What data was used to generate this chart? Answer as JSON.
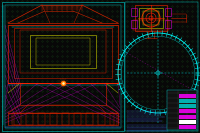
{
  "bg_color": "#080808",
  "grid_color": "#1a5c1a",
  "red": "#cc2200",
  "bright_red": "#ff2200",
  "cyan": "#00cccc",
  "bright_cyan": "#00ffff",
  "magenta": "#cc00cc",
  "bright_magenta": "#ff00ff",
  "yellow": "#cccc00",
  "bright_yellow": "#ffff00",
  "orange": "#ff6600",
  "blue": "#2244cc",
  "bright_blue": "#4466ff",
  "white": "#ffffff",
  "green": "#00cc00",
  "dim_cyan": "#006666",
  "figsize": [
    2.0,
    1.33
  ],
  "dpi": 100,
  "lw_thin": 0.3,
  "lw_med": 0.5,
  "lw_thick": 0.7
}
